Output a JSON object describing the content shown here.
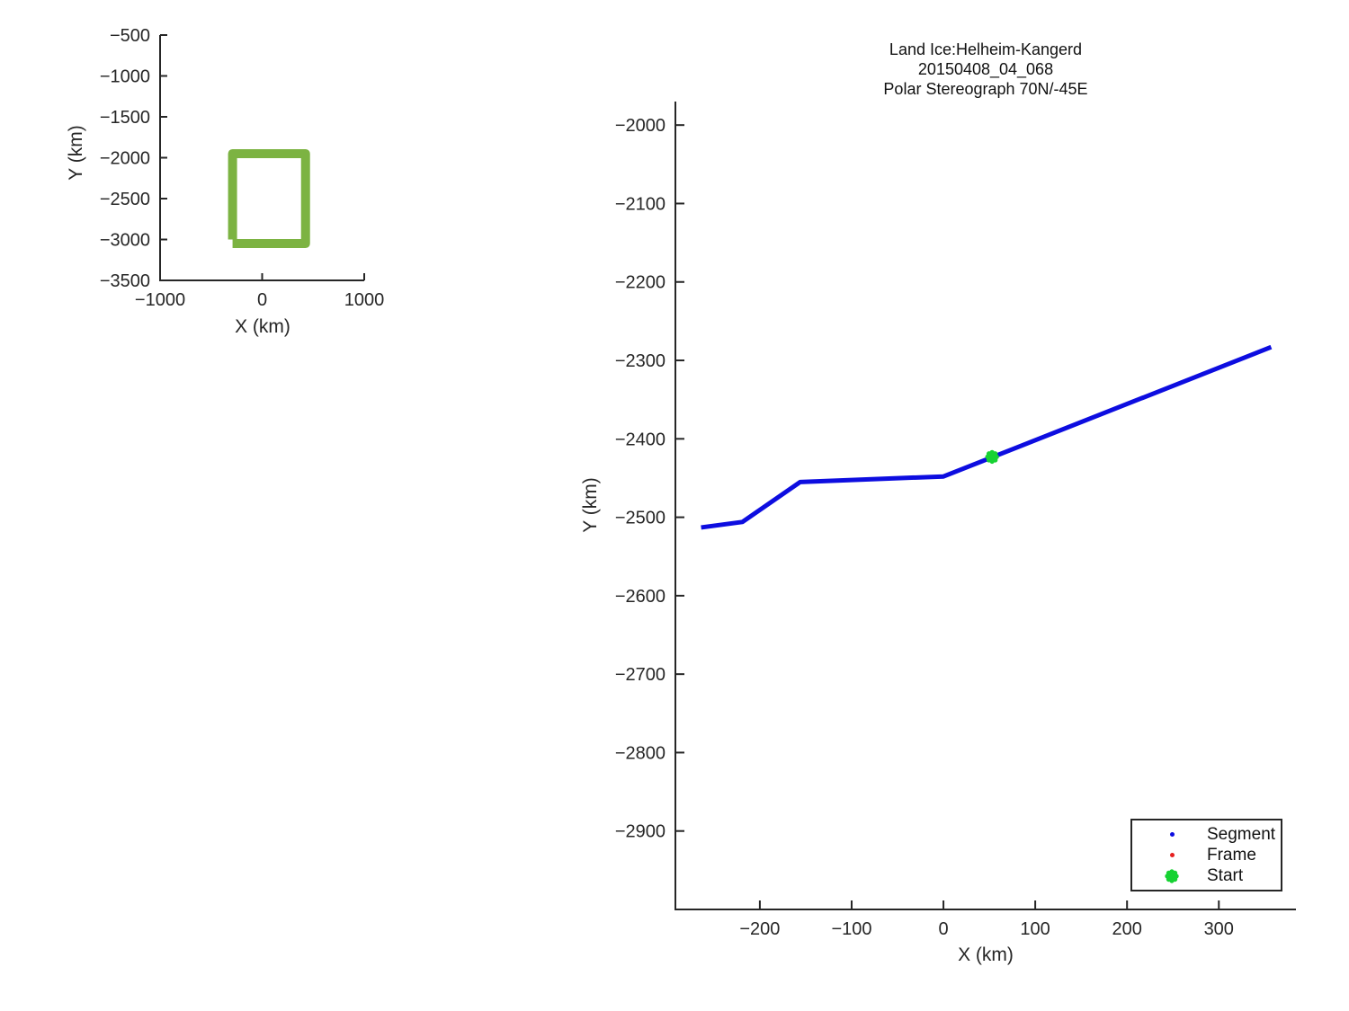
{
  "colors": {
    "segment_line": "#0d0de0",
    "frame_marker": "#e62020",
    "start_marker": "#17d233",
    "coverage_box": "#7cb342",
    "axis": "#262626"
  },
  "legend": {
    "entries": [
      {
        "label": "Segment",
        "marker": "dot",
        "color_key": "segment_line"
      },
      {
        "label": "Frame",
        "marker": "dot",
        "color_key": "frame_marker"
      },
      {
        "label": "Start",
        "marker": "flower",
        "color_key": "start_marker"
      }
    ]
  },
  "chart_data": [
    {
      "type": "line",
      "role": "overview-map",
      "title": "",
      "xlabel": "X (km)",
      "ylabel": "Y (km)",
      "xlim": [
        -1000,
        1000
      ],
      "ylim": [
        -3500,
        -500
      ],
      "xticks": [
        -1000,
        0,
        1000
      ],
      "yticks": [
        -500,
        -1000,
        -1500,
        -2000,
        -2500,
        -3000,
        -3500
      ],
      "grid": false,
      "series": [
        {
          "name": "coverage-box",
          "color": "#7cb342",
          "line_width": 10,
          "x": [
            -290,
            -290,
            425,
            425,
            -290
          ],
          "y": [
            -3000,
            -1950,
            -1950,
            -3050,
            -3050
          ]
        }
      ]
    },
    {
      "type": "line",
      "role": "flight-track",
      "title_lines": [
        "Land Ice:Helheim-Kangerd",
        "20150408_04_068",
        "Polar Stereograph 70N/-45E"
      ],
      "xlabel": "X (km)",
      "ylabel": "Y (km)",
      "xlim": [
        -292,
        384
      ],
      "ylim": [
        -3000,
        -1970
      ],
      "xticks": [
        -200,
        -100,
        0,
        100,
        200,
        300
      ],
      "yticks": [
        -2000,
        -2100,
        -2200,
        -2300,
        -2400,
        -2500,
        -2600,
        -2700,
        -2800,
        -2900
      ],
      "grid": false,
      "legend_position": "lower-right",
      "series": [
        {
          "name": "segment-track",
          "legend": "Segment",
          "color": "#0d0de0",
          "line_width": 5,
          "x": [
            -264,
            -219,
            -156,
            0,
            357
          ],
          "y": [
            -2513,
            -2506,
            -2455,
            -2448,
            -2283
          ]
        }
      ],
      "markers": [
        {
          "name": "start",
          "legend": "Start",
          "shape": "flower",
          "color": "#17d233",
          "size": 16,
          "x": 53,
          "y": -2423
        }
      ]
    }
  ]
}
